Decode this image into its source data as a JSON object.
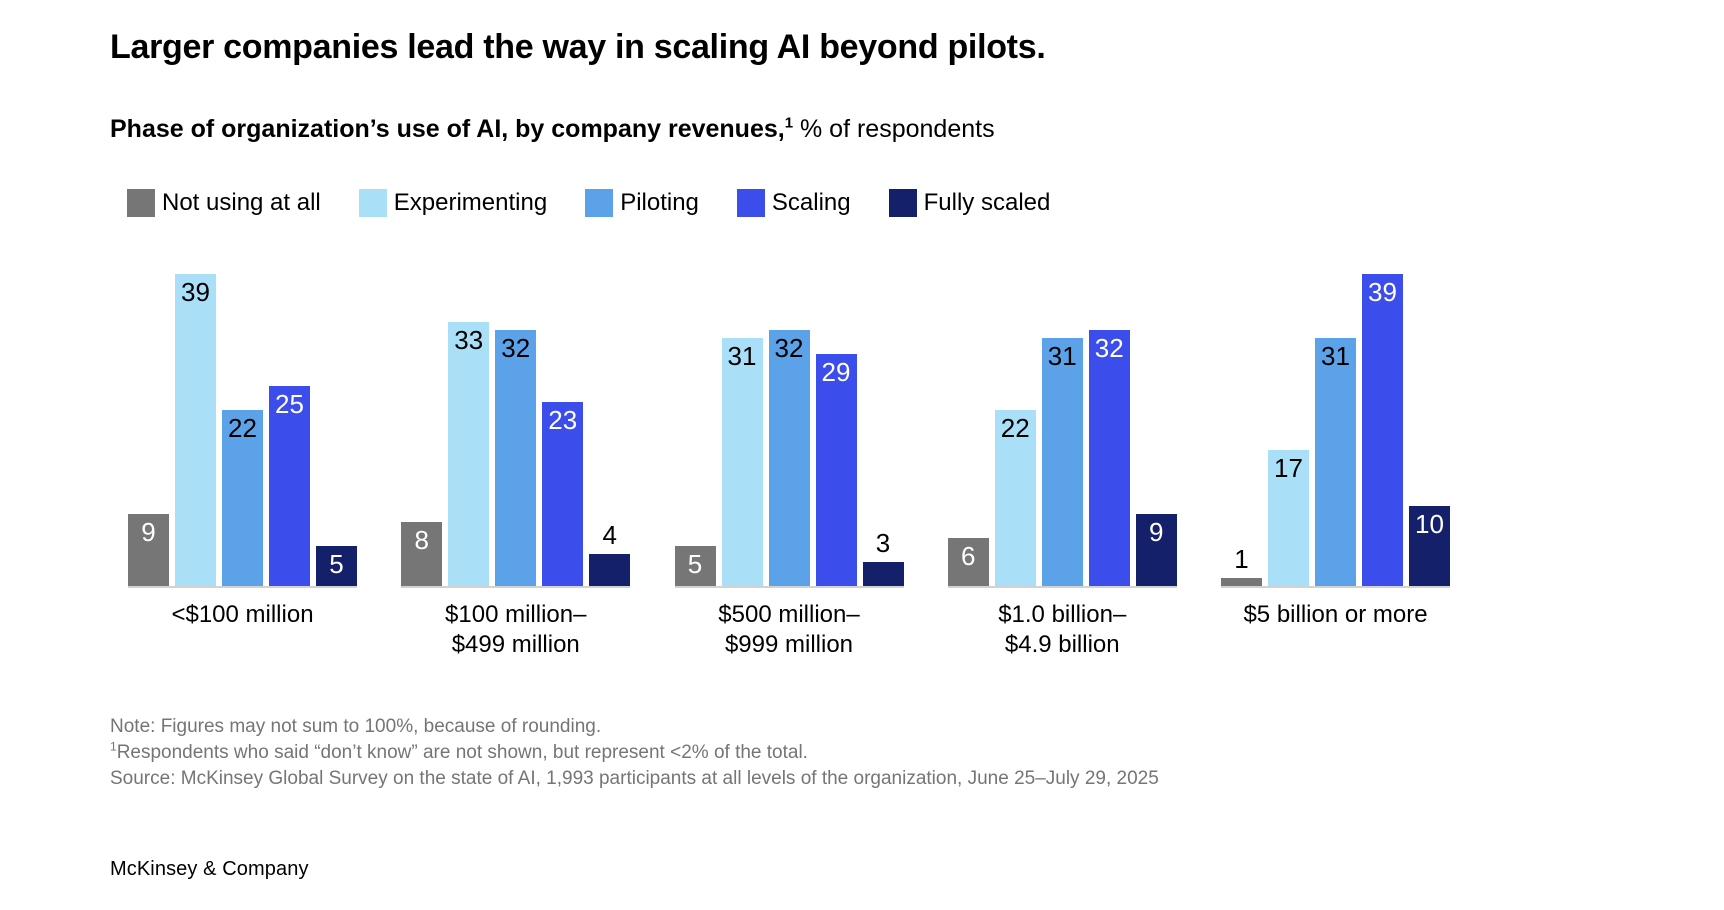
{
  "page": {
    "title": "Larger companies lead the way in scaling AI beyond pilots.",
    "subtitle_bold": "Phase of organization’s use of AI, by company revenues,",
    "subtitle_sup": "1",
    "subtitle_rest": " % of respondents",
    "footnotes": [
      {
        "sup": "",
        "text": "Note: Figures may not sum to 100%, because of rounding."
      },
      {
        "sup": "1",
        "text": "Respondents who said “don’t know” are not shown, but represent <2% of the total."
      },
      {
        "sup": "",
        "text": "Source: McKinsey Global Survey on the state of AI, 1,993 participants at all levels of the organization, June 25–July 29, 2025"
      }
    ],
    "brand": "McKinsey & Company"
  },
  "chart_data": {
    "type": "bar",
    "title": "Phase of organization’s use of AI, by company revenues, % of respondents",
    "unit": "%",
    "ylim": [
      0,
      40
    ],
    "grid": false,
    "legend_position": "top",
    "value_label_above_threshold": 5,
    "categories": [
      [
        "<$100 million"
      ],
      [
        "$100 million–",
        "$499 million"
      ],
      [
        "$500 million–",
        "$999 million"
      ],
      [
        "$1.0 billion–",
        "$4.9 billion"
      ],
      [
        "$5 billion or more"
      ]
    ],
    "series": [
      {
        "name": "Not using at all",
        "color": "#767676",
        "label_color": "#ffffff",
        "values": [
          9,
          8,
          5,
          6,
          1
        ]
      },
      {
        "name": "Experimenting",
        "color": "#A9DFF7",
        "label_color": "#000000",
        "values": [
          39,
          33,
          31,
          22,
          17
        ]
      },
      {
        "name": "Piloting",
        "color": "#5BA2E8",
        "label_color": "#000000",
        "values": [
          22,
          32,
          32,
          31,
          31
        ]
      },
      {
        "name": "Scaling",
        "color": "#3B4DEB",
        "label_color": "#ffffff",
        "values": [
          25,
          23,
          29,
          32,
          39
        ]
      },
      {
        "name": "Fully scaled",
        "color": "#15206B",
        "label_color": "#ffffff",
        "values": [
          5,
          4,
          3,
          9,
          10
        ]
      }
    ]
  }
}
